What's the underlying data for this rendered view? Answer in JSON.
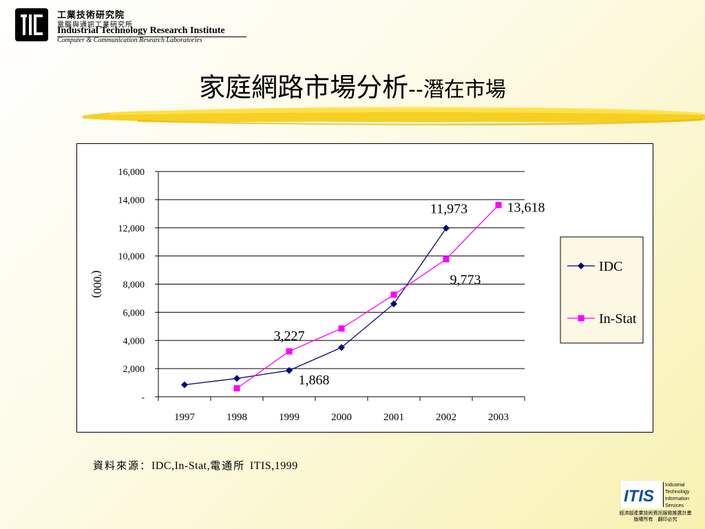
{
  "header": {
    "org_cn": "工業技術研究院",
    "lab_cn": "電腦與通訊工業研究所",
    "org_en": "Industrial Technology Research Institute",
    "lab_en": "Computer & Communication Research Laboratories"
  },
  "slide": {
    "title_main": "家庭網路市場分析",
    "title_sep": "--",
    "title_sub": "潛在市場"
  },
  "chart_data": {
    "type": "line",
    "x": [
      "1997",
      "1998",
      "1999",
      "2000",
      "2001",
      "2002",
      "2003"
    ],
    "ylabel": "('000)",
    "ylim": [
      0,
      16000
    ],
    "yticks": [
      "-",
      "2,000",
      "4,000",
      "6,000",
      "8,000",
      "10,000",
      "12,000",
      "14,000",
      "16,000"
    ],
    "grid": true,
    "legend_position": "right",
    "series": [
      {
        "name": "IDC",
        "color": "#000080",
        "marker": "diamond",
        "values": [
          850,
          1300,
          1868,
          3500,
          6600,
          11973,
          null
        ]
      },
      {
        "name": "In-Stat",
        "color": "#ff00ff",
        "marker": "square",
        "values": [
          null,
          600,
          3227,
          4850,
          7250,
          9773,
          13618
        ]
      }
    ],
    "annotations": [
      {
        "text": "1,868",
        "series": 0,
        "index": 2
      },
      {
        "text": "3,227",
        "series": 1,
        "index": 2
      },
      {
        "text": "11,973",
        "series": 0,
        "index": 5
      },
      {
        "text": "9,773",
        "series": 1,
        "index": 5
      },
      {
        "text": "13,618",
        "series": 1,
        "index": 6
      }
    ]
  },
  "footer": {
    "source_label": "資料來源：",
    "source_en": "IDC,In-Stat,",
    "source_cn": "電通所",
    "source_en2": "ITIS,1999"
  },
  "itis": {
    "logo_text": "ITIS",
    "lines": [
      "Industrial",
      "Technology",
      "Information",
      "Services"
    ],
    "foot1": "經濟部產業技術資訊服務推廣計畫",
    "foot2": "版權所有　翻印必究"
  }
}
